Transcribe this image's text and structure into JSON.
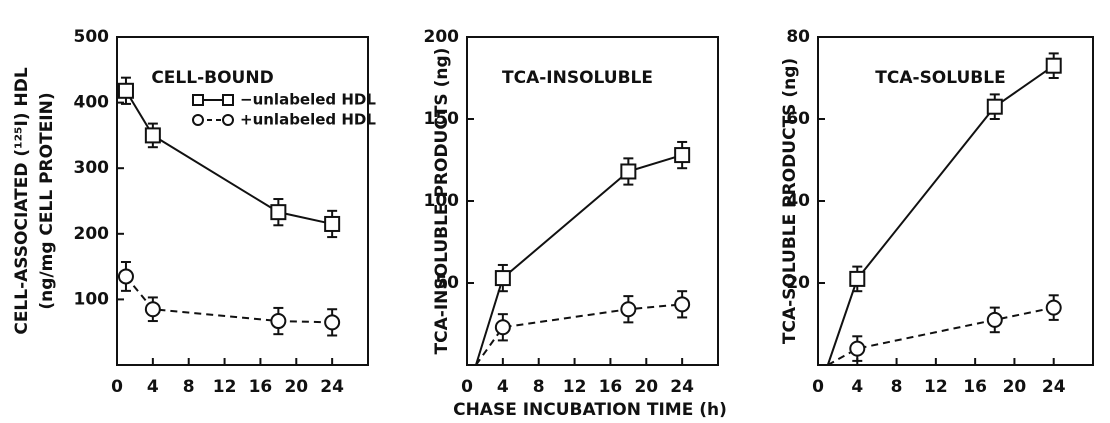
{
  "chart_data": [
    {
      "type": "line",
      "title": "CELL-BOUND",
      "ylabel": [
        "CELL-ASSOCIATED (¹²⁵I) HDL",
        "(ng/mg CELL PROTEIN)"
      ],
      "x": [
        1,
        4,
        18,
        24
      ],
      "xlim": [
        0,
        28
      ],
      "xticks": [
        0,
        4,
        8,
        12,
        16,
        20,
        24
      ],
      "ylim": [
        0,
        500
      ],
      "yticks": [
        100,
        200,
        300,
        400,
        500
      ],
      "series": [
        {
          "name": "−unlabeled HDL",
          "color": "#111",
          "marker": "square",
          "style": "solid",
          "values": [
            418,
            350,
            233,
            215
          ],
          "errors": [
            20,
            18,
            20,
            20
          ]
        },
        {
          "name": "+unlabeled HDL",
          "color": "#111",
          "marker": "circle",
          "style": "dashed",
          "values": [
            135,
            85,
            67,
            65
          ],
          "errors": [
            22,
            18,
            20,
            20
          ]
        }
      ]
    },
    {
      "type": "line",
      "title": "TCA-INSOLUBLE",
      "ylabel": [
        "TCA-INSOLUBLE PRODUCTS (ng)"
      ],
      "xlabel": "CHASE INCUBATION TIME (h)",
      "x": [
        1,
        4,
        18,
        24
      ],
      "xlim": [
        0,
        28
      ],
      "xticks": [
        0,
        4,
        8,
        12,
        16,
        20,
        24
      ],
      "ylim": [
        0,
        200
      ],
      "yticks": [
        50,
        100,
        150,
        200
      ],
      "series": [
        {
          "color": "#111",
          "marker": "square",
          "style": "solid",
          "values": [
            0,
            53,
            118,
            128
          ],
          "errors": [
            null,
            8,
            8,
            8
          ]
        },
        {
          "color": "#111",
          "marker": "circle",
          "style": "dashed",
          "values": [
            0,
            23,
            34,
            37
          ],
          "errors": [
            null,
            8,
            8,
            8
          ]
        }
      ]
    },
    {
      "type": "line",
      "title": "TCA-SOLUBLE",
      "ylabel": [
        "TCA-SOLUBLE PRODUCTS (ng)"
      ],
      "x": [
        1,
        4,
        18,
        24
      ],
      "xlim": [
        0,
        28
      ],
      "xticks": [
        0,
        4,
        8,
        12,
        16,
        20,
        24
      ],
      "ylim": [
        0,
        80
      ],
      "yticks": [
        20,
        40,
        60,
        80
      ],
      "series": [
        {
          "color": "#111",
          "marker": "square",
          "style": "solid",
          "values": [
            0,
            21,
            63,
            73
          ],
          "errors": [
            null,
            3,
            3,
            3
          ]
        },
        {
          "color": "#111",
          "marker": "circle",
          "style": "dashed",
          "values": [
            0,
            4,
            11,
            14
          ],
          "errors": [
            null,
            3,
            3,
            3
          ]
        }
      ]
    }
  ]
}
